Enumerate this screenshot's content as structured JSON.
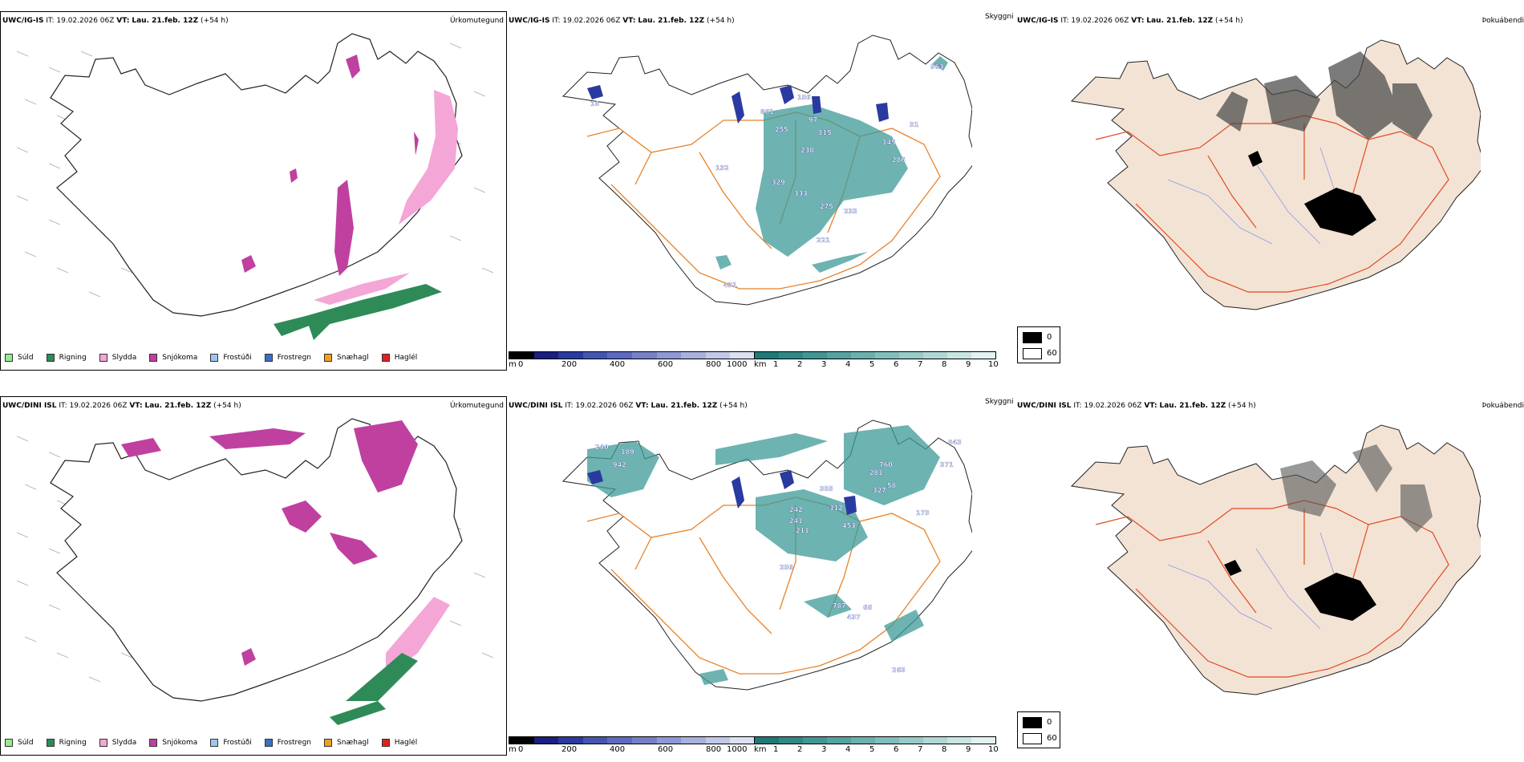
{
  "rows": [
    {
      "model": "UWC/IG-IS",
      "it_label": "IT:",
      "it_value": "19.02.2026 06Z",
      "vt_label": "VT:",
      "vt_value": "Lau. 21.feb. 12Z",
      "lead": "(+54 h)",
      "panel_titles": [
        "Úrkomutegund",
        "Skyggni",
        "Þokuábendi"
      ]
    },
    {
      "model": "UWC/DINI ISL",
      "it_label": "IT:",
      "it_value": "19.02.2026 06Z",
      "vt_label": "VT:",
      "vt_value": "Lau. 21.feb. 12Z",
      "lead": "(+54 h)",
      "panel_titles": [
        "Úrkomutegund",
        "Skyggni",
        "Þokuábendi"
      ]
    }
  ],
  "precip_legend": [
    {
      "label": "Súld",
      "color": "#90ee90"
    },
    {
      "label": "Rigning",
      "color": "#2e8b57"
    },
    {
      "label": "Slydda",
      "color": "#f4a6d7"
    },
    {
      "label": "Snjókoma",
      "color": "#c040a0"
    },
    {
      "label": "Frostúði",
      "color": "#a0c4f0"
    },
    {
      "label": "Frostregn",
      "color": "#3b6fc4"
    },
    {
      "label": "Snæhagl",
      "color": "#f0a020"
    },
    {
      "label": "Haglél",
      "color": "#e02020"
    }
  ],
  "visibility_m_bar": {
    "unit": "m",
    "ticks": [
      "0",
      "200",
      "400",
      "600",
      "800",
      "1000"
    ],
    "colors": [
      "#000000",
      "#1a1f80",
      "#2a3aa0",
      "#4455b0",
      "#5c6ac0",
      "#7580c8",
      "#8e98d4",
      "#a8b0de",
      "#c2c8e8",
      "#dce0f2"
    ]
  },
  "visibility_km_bar": {
    "unit": "km",
    "ticks": [
      "1",
      "2",
      "3",
      "4",
      "5",
      "6",
      "7",
      "8",
      "9",
      "10"
    ],
    "colors": [
      "#1e7a78",
      "#2f8886",
      "#419694",
      "#55a3a1",
      "#6ab1ae",
      "#80bebb",
      "#97cbc8",
      "#afd8d5",
      "#c8e5e3",
      "#e2f2f1"
    ]
  },
  "obscurity_legend": {
    "top": "0",
    "bottom": "60"
  },
  "visibility_labels": [
    [
      "963",
      "861",
      "156",
      "255",
      "238",
      "145",
      "115",
      "31",
      "132",
      "329",
      "333",
      "221",
      "431",
      "16",
      "97",
      "275",
      "233",
      "286"
    ],
    [
      "942",
      "189",
      "240",
      "760",
      "281",
      "371",
      "327",
      "312",
      "453",
      "242",
      "241",
      "211",
      "787",
      "437",
      "66",
      "256",
      "265",
      "173",
      "943",
      "355",
      "58"
    ]
  ]
}
